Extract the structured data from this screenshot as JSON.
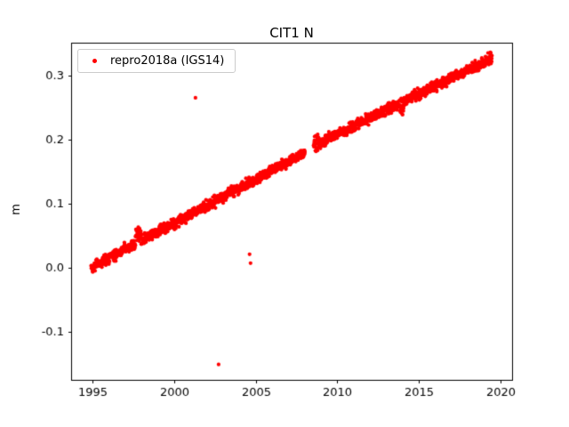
{
  "figure": {
    "background": "#ffffff",
    "axes_edge_color": "#000000",
    "legend_edge_color": "#cccccc"
  },
  "chart_data": {
    "type": "scatter",
    "title": "CIT1 N",
    "xlabel": "",
    "ylabel": "m",
    "xlim": [
      1993.67,
      2020.73
    ],
    "ylim": [
      -0.175,
      0.351
    ],
    "xticks": [
      1995,
      2000,
      2005,
      2010,
      2015,
      2020
    ],
    "yticks": [
      -0.1,
      0.0,
      0.1,
      0.2,
      0.3
    ],
    "grid": false,
    "legend_position": "upper left",
    "series": [
      {
        "name": "repro2018a (IGS14)",
        "color": "#ff0000",
        "marker": "dot",
        "marker_radius": 2.1,
        "trend_segments": [
          {
            "x_start": 1994.9,
            "x_end": 2008.02,
            "y_start": 0.0,
            "y_end": 0.179,
            "noise": 0.004,
            "step": 0.012
          },
          {
            "x_start": 2008.55,
            "x_end": 2019.5,
            "y_start": 0.19,
            "y_end": 0.327,
            "noise": 0.004,
            "step": 0.012
          }
        ],
        "anomalies": [
          {
            "x_start": 1997.62,
            "x_end": 1997.95,
            "offset": 0.013,
            "extra_noise": 0.002
          },
          {
            "x_start": 2008.55,
            "x_end": 2008.85,
            "offset": 0.003,
            "extra_noise": 0.002
          },
          {
            "x_start": 2013.85,
            "x_end": 2014.1,
            "offset": -0.006,
            "extra_noise": 0.003
          },
          {
            "x_start": 2019.25,
            "x_end": 2019.5,
            "offset": 0.002,
            "extra_noise": 0.003
          }
        ],
        "outliers": [
          [
            2001.3,
            0.265
          ],
          [
            2002.72,
            -0.151
          ],
          [
            2004.62,
            0.021
          ],
          [
            2004.68,
            0.007
          ]
        ]
      }
    ]
  }
}
